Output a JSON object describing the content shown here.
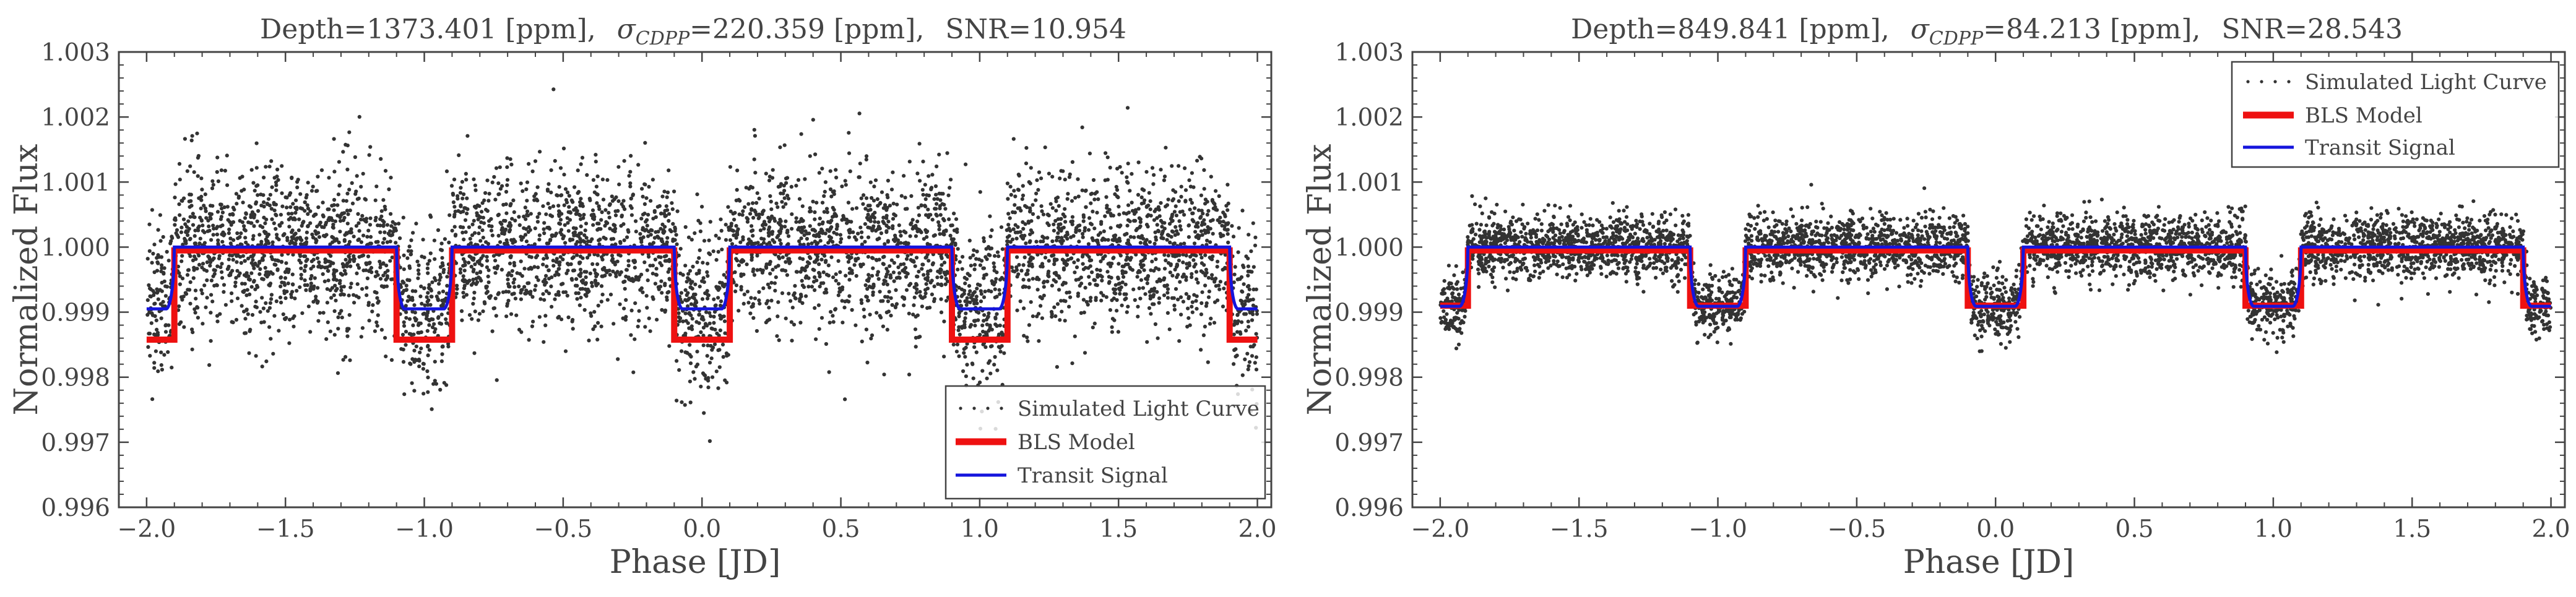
{
  "chart_data": [
    {
      "type": "scatter",
      "title": {
        "depth": "Depth=1373.401 [ppm],",
        "sigma_symbol": "σ",
        "sigma_sub": "CDPP",
        "sigma_value": "=220.359 [ppm],",
        "snr": "SNR=10.954"
      },
      "xlabel": "Phase [JD]",
      "ylabel": "Normalized Flux",
      "xlim": [
        -2.1,
        2.05
      ],
      "ylim": [
        0.996,
        1.003
      ],
      "x_ticks": [
        -2.0,
        -1.5,
        -1.0,
        -0.5,
        0.0,
        0.5,
        1.0,
        1.5,
        2.0
      ],
      "x_tick_labels": [
        "−2.0",
        "−1.5",
        "−1.0",
        "−0.5",
        "0.0",
        "0.5",
        "1.0",
        "1.5",
        "2.0"
      ],
      "y_ticks": [
        0.996,
        0.997,
        0.998,
        0.999,
        1.0,
        1.001,
        1.002,
        1.003
      ],
      "y_tick_labels": [
        "0.996",
        "0.997",
        "0.998",
        "0.999",
        "1.000",
        "1.001",
        "1.002",
        "1.003"
      ],
      "legend_position": "bottom-right",
      "period": 1.0,
      "transit_centers": [
        -2.0,
        -1.0,
        0.0,
        1.0,
        2.0
      ],
      "series": [
        {
          "name": "Simulated Light Curve",
          "kind": "scatter",
          "color": "#333333",
          "noise_sigma": 0.00062,
          "n_points": 5200,
          "seed": 11
        },
        {
          "name": "BLS Model",
          "kind": "step",
          "color": "#ee1111",
          "baseline": 0.99995,
          "depth": 0.001373,
          "half_width": 0.1
        },
        {
          "name": "Transit Signal",
          "kind": "line",
          "color": "#1515dd",
          "baseline": 1.0,
          "depth": 0.00095,
          "half_width": 0.1,
          "ingress": 0.03
        }
      ]
    },
    {
      "type": "scatter",
      "title": {
        "depth": "Depth=849.841 [ppm],",
        "sigma_symbol": "σ",
        "sigma_sub": "CDPP",
        "sigma_value": "=84.213 [ppm],",
        "snr": "SNR=28.543"
      },
      "xlabel": "Phase [JD]",
      "ylabel": "Normalized Flux",
      "xlim": [
        -2.1,
        2.05
      ],
      "ylim": [
        0.996,
        1.003
      ],
      "x_ticks": [
        -2.0,
        -1.5,
        -1.0,
        -0.5,
        0.0,
        0.5,
        1.0,
        1.5,
        2.0
      ],
      "x_tick_labels": [
        "−2.0",
        "−1.5",
        "−1.0",
        "−0.5",
        "0.0",
        "0.5",
        "1.0",
        "1.5",
        "2.0"
      ],
      "y_ticks": [
        0.996,
        0.997,
        0.998,
        0.999,
        1.0,
        1.001,
        1.002,
        1.003
      ],
      "y_tick_labels": [
        "0.996",
        "0.997",
        "0.998",
        "0.999",
        "1.000",
        "1.001",
        "1.002",
        "1.003"
      ],
      "legend_position": "top-right",
      "period": 1.0,
      "transit_centers": [
        -2.0,
        -1.0,
        0.0,
        1.0,
        2.0
      ],
      "series": [
        {
          "name": "Simulated Light Curve",
          "kind": "scatter",
          "color": "#333333",
          "noise_sigma": 0.00024,
          "n_points": 5200,
          "seed": 23
        },
        {
          "name": "BLS Model",
          "kind": "step",
          "color": "#ee1111",
          "baseline": 0.99995,
          "depth": 0.00085,
          "half_width": 0.1
        },
        {
          "name": "Transit Signal",
          "kind": "line",
          "color": "#1515dd",
          "baseline": 1.0,
          "depth": 0.00091,
          "half_width": 0.1,
          "ingress": 0.03
        }
      ]
    }
  ]
}
